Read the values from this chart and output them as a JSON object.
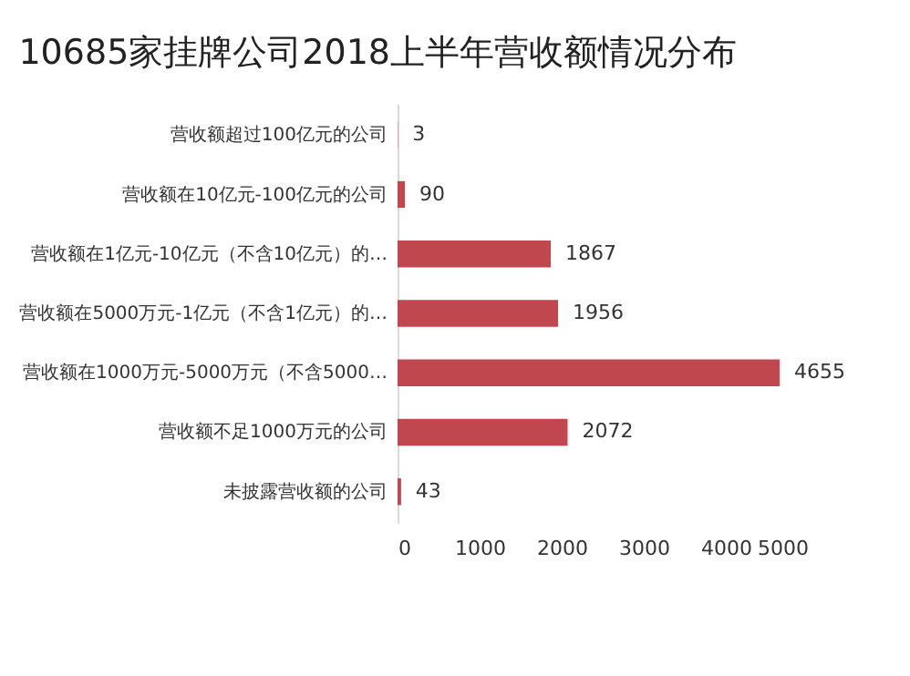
{
  "chart_data": {
    "type": "bar",
    "orientation": "horizontal",
    "title": "10685家挂牌公司2018上半年营收额情况分布",
    "categories": [
      "营收额超过100亿元的公司",
      "营收额在10亿元-100亿元的公司",
      "营收额在1亿元-10亿元（不含10亿元）的…",
      "营收额在5000万元-1亿元（不含1亿元）的…",
      "营收额在1000万元-5000万元（不含5000…",
      "营收额不足1000万元的公司",
      "未披露营收额的公司"
    ],
    "values": [
      3,
      90,
      1867,
      1956,
      4655,
      2072,
      43
    ],
    "color": "#c0474e",
    "xlim": [
      0,
      5000
    ],
    "xticks": [
      0,
      1000,
      2000,
      3000,
      4000,
      5000
    ],
    "grid": false,
    "data_labels": true
  }
}
